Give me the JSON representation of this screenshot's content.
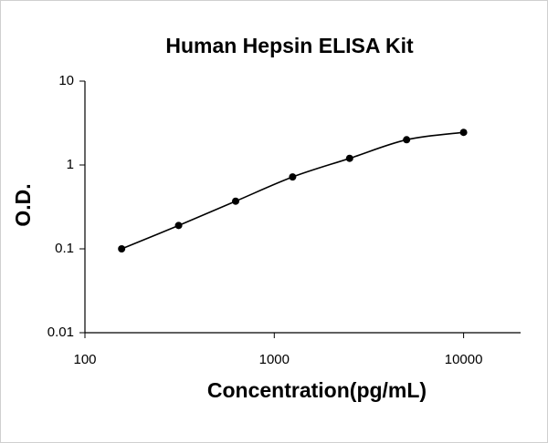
{
  "chart_data": {
    "type": "line",
    "title": "Human Hepsin ELISA Kit",
    "x_label": "Concentration(pg/mL)",
    "y_label": "O.D.",
    "x": [
      156.25,
      312.5,
      625,
      1250,
      2500,
      5000,
      10000
    ],
    "series": [
      {
        "values": [
          0.1,
          0.19,
          0.37,
          0.72,
          1.2,
          2.0,
          2.45
        ],
        "color": "#000000"
      }
    ],
    "xscale": "log",
    "yscale": "log",
    "xlim": [
      100,
      20000
    ],
    "ylim": [
      0.01,
      10
    ],
    "xticks": [
      100,
      1000,
      10000
    ],
    "yticks": [
      0.01,
      0.1,
      1,
      10
    ],
    "grid": false
  }
}
